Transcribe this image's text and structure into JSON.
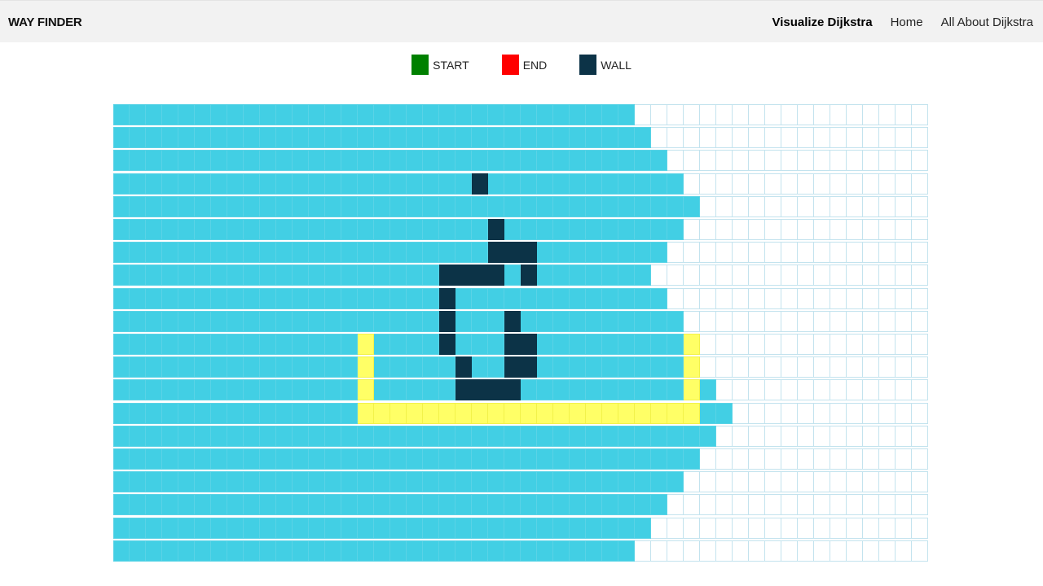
{
  "header": {
    "brand": "WAY FINDER",
    "links": [
      {
        "label": "Visualize Dijkstra",
        "active": true
      },
      {
        "label": "Home",
        "active": false
      },
      {
        "label": "All About Dijkstra",
        "active": false
      }
    ]
  },
  "legend": [
    {
      "label": "START",
      "color": "#008000"
    },
    {
      "label": "END",
      "color": "#ff0000"
    },
    {
      "label": "WALL",
      "color": "#0c3347"
    }
  ],
  "colors": {
    "visited": "#42cfe4",
    "wall": "#0c3347",
    "path": "#ffff66",
    "unvisited": "#ffffff",
    "grid_border": "#c3e3ee"
  },
  "grid": {
    "rows": 20,
    "cols": 50,
    "visited_extent_per_row": [
      32,
      33,
      34,
      35,
      36,
      35,
      34,
      33,
      34,
      35,
      36,
      36,
      37,
      38,
      37,
      36,
      35,
      34,
      33,
      32
    ],
    "walls": [
      [
        3,
        22
      ],
      [
        5,
        23
      ],
      [
        6,
        23
      ],
      [
        6,
        24
      ],
      [
        6,
        25
      ],
      [
        7,
        20
      ],
      [
        7,
        21
      ],
      [
        7,
        22
      ],
      [
        7,
        23
      ],
      [
        7,
        25
      ],
      [
        8,
        20
      ],
      [
        9,
        20
      ],
      [
        9,
        24
      ],
      [
        10,
        20
      ],
      [
        10,
        24
      ],
      [
        10,
        25
      ],
      [
        11,
        21
      ],
      [
        11,
        24
      ],
      [
        11,
        25
      ],
      [
        12,
        21
      ],
      [
        12,
        22
      ],
      [
        12,
        23
      ],
      [
        12,
        24
      ]
    ],
    "path": [
      [
        10,
        15
      ],
      [
        10,
        35
      ],
      [
        11,
        15
      ],
      [
        11,
        35
      ],
      [
        12,
        15
      ],
      [
        12,
        35
      ],
      [
        13,
        15
      ],
      [
        13,
        16
      ],
      [
        13,
        17
      ],
      [
        13,
        18
      ],
      [
        13,
        19
      ],
      [
        13,
        20
      ],
      [
        13,
        21
      ],
      [
        13,
        22
      ],
      [
        13,
        23
      ],
      [
        13,
        24
      ],
      [
        13,
        25
      ],
      [
        13,
        26
      ],
      [
        13,
        27
      ],
      [
        13,
        28
      ],
      [
        13,
        29
      ],
      [
        13,
        30
      ],
      [
        13,
        31
      ],
      [
        13,
        32
      ],
      [
        13,
        33
      ],
      [
        13,
        34
      ],
      [
        13,
        35
      ]
    ]
  }
}
